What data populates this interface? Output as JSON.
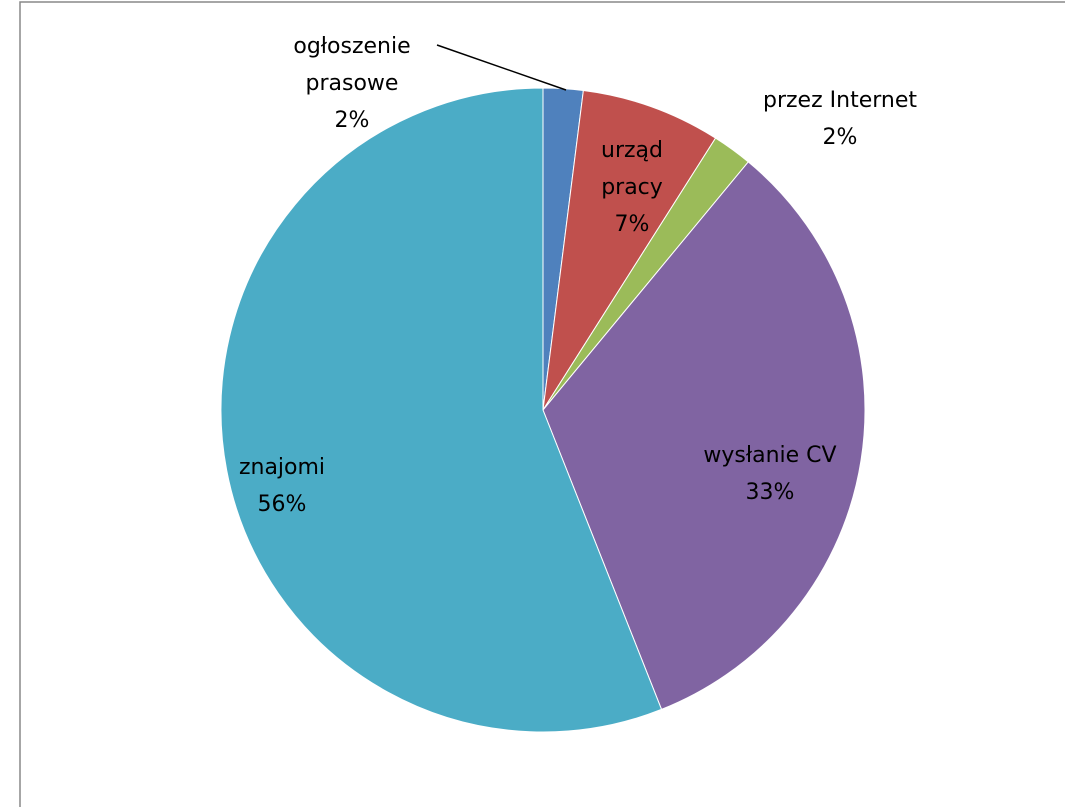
{
  "chart_data": {
    "type": "pie",
    "categories": [
      "ogłoszenie prasowe",
      "urząd pracy",
      "przez Internet",
      "wysłanie CV",
      "znajomi"
    ],
    "values": [
      2,
      7,
      2,
      33,
      56
    ],
    "value_labels": [
      "2%",
      "7%",
      "2%",
      "33%",
      "56%"
    ],
    "colors": [
      "#4f81bd",
      "#c0504d",
      "#9bbb59",
      "#8064a2",
      "#4bacc6"
    ]
  }
}
